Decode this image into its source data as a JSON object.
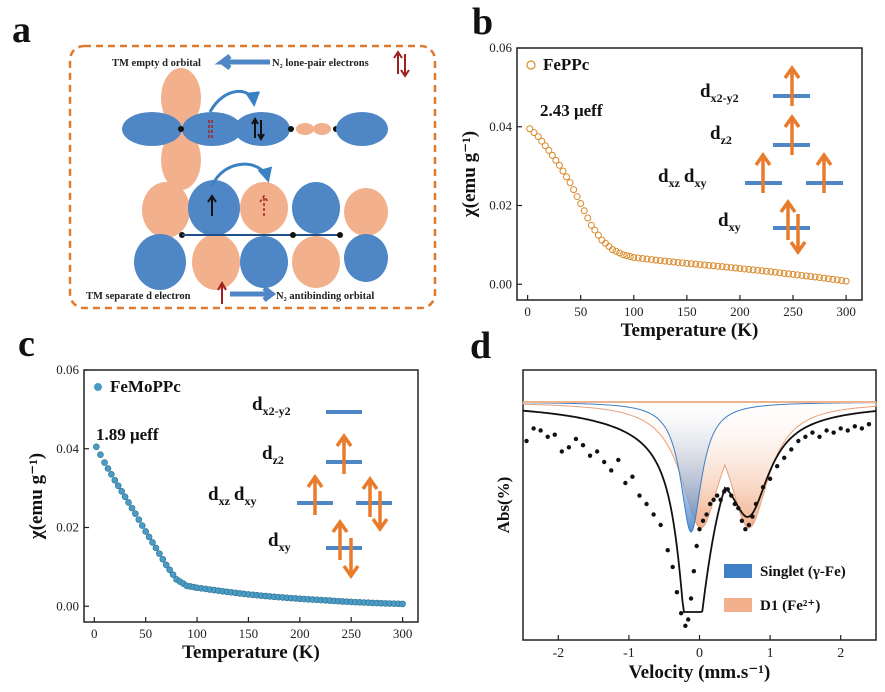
{
  "panels": {
    "a": {
      "letter": "a",
      "top_label_left": "TM empty d orbital",
      "top_label_right": "N₂ lone-pair electrons",
      "bottom_label_left": "TM separate d electron",
      "bottom_label_right": "N₂ antibinding orbital",
      "colors": {
        "blue": "#4f86c6",
        "salmon": "#f2b08c",
        "border": "#e07a2e",
        "arrow": "#3b82c4"
      }
    },
    "b": {
      "letter": "b",
      "moment_label": "2.43 μeff",
      "levels": [
        "d",
        "x2-y2",
        "d",
        "z2",
        "d",
        "xz",
        "d",
        "xy",
        "d",
        "xy"
      ]
    },
    "c": {
      "letter": "c",
      "moment_label": "1.89 μeff",
      "levels": [
        "d",
        "x2-y2",
        "d",
        "z2",
        "d",
        "xz",
        "d",
        "xy",
        "d",
        "xy"
      ]
    },
    "d": {
      "letter": "d"
    }
  },
  "chart_data": [
    {
      "id": "b",
      "type": "scatter",
      "xlabel": "Temperature (K)",
      "ylabel": "χ(emu g⁻¹)",
      "xlim": [
        -10,
        315
      ],
      "ylim": [
        -0.004,
        0.06
      ],
      "xticks": [
        0,
        50,
        100,
        150,
        200,
        250,
        300
      ],
      "yticks": [
        0.0,
        0.02,
        0.04,
        0.06
      ],
      "ytick_labels": [
        "0.00",
        "0.02",
        "0.04",
        "0.06"
      ],
      "legend": "top-left",
      "series": [
        {
          "name": "FePPc",
          "color": "#d98a2b",
          "marker": "open-circle",
          "x": [
            2,
            10,
            20,
            30,
            40,
            50,
            60,
            70,
            80,
            90,
            100,
            125,
            150,
            175,
            200,
            225,
            250,
            275,
            300
          ],
          "y": [
            0.0395,
            0.0375,
            0.034,
            0.0302,
            0.0258,
            0.0205,
            0.015,
            0.0112,
            0.0088,
            0.0075,
            0.0068,
            0.006,
            0.0053,
            0.0047,
            0.004,
            0.0033,
            0.0025,
            0.0017,
            0.0008
          ]
        }
      ]
    },
    {
      "id": "c",
      "type": "scatter",
      "xlabel": "Temperature (K)",
      "ylabel": "χ(emu g⁻¹)",
      "xlim": [
        -10,
        315
      ],
      "ylim": [
        -0.004,
        0.06
      ],
      "xticks": [
        0,
        50,
        100,
        150,
        200,
        250,
        300
      ],
      "yticks": [
        0.0,
        0.02,
        0.04,
        0.06
      ],
      "ytick_labels": [
        "0.00",
        "0.02",
        "0.04",
        "0.06"
      ],
      "legend": "top-left",
      "series": [
        {
          "name": "FeMoPPc",
          "color": "#4a9cc4",
          "marker": "filled-circle",
          "x": [
            2,
            10,
            20,
            30,
            40,
            50,
            60,
            70,
            80,
            90,
            100,
            125,
            150,
            175,
            200,
            225,
            250,
            275,
            300
          ],
          "y": [
            0.0405,
            0.0365,
            0.032,
            0.0278,
            0.0235,
            0.019,
            0.0148,
            0.0105,
            0.0068,
            0.0052,
            0.0047,
            0.0038,
            0.003,
            0.0024,
            0.0019,
            0.0015,
            0.0011,
            0.0008,
            0.0006
          ]
        }
      ]
    },
    {
      "id": "d",
      "type": "scatter",
      "xlabel": "Velocity (mm.s⁻¹)",
      "ylabel": "Abs(%)",
      "xlim": [
        -2.5,
        2.5
      ],
      "xticks": [
        -2,
        -1,
        0,
        1,
        2
      ],
      "yticks": [],
      "legend": "bottom-right",
      "series": [
        {
          "name": "Singlet (γ-Fe)",
          "color": "#3f7fc6",
          "type": "area",
          "center": -0.12,
          "width": 0.18,
          "depth": 0.62
        },
        {
          "name": "D1 (Fe²⁺)",
          "color": "#f2b08c",
          "type": "area",
          "centers": [
            0.02,
            0.7
          ],
          "width": 0.34,
          "depth": 0.6
        },
        {
          "type": "data-points",
          "color": "#111",
          "x": [
            -2.45,
            -2.35,
            -2.25,
            -2.15,
            -2.05,
            -1.95,
            -1.85,
            -1.75,
            -1.65,
            -1.55,
            -1.45,
            -1.35,
            -1.25,
            -1.15,
            -1.05,
            -0.95,
            -0.85,
            -0.75,
            -0.65,
            -0.55,
            -0.45,
            -0.38,
            -0.32,
            -0.26,
            -0.2,
            -0.16,
            -0.12,
            -0.08,
            -0.04,
            0.0,
            0.05,
            0.1,
            0.15,
            0.2,
            0.25,
            0.3,
            0.35,
            0.4,
            0.45,
            0.5,
            0.55,
            0.6,
            0.65,
            0.7,
            0.75,
            0.8,
            0.9,
            1.0,
            1.1,
            1.2,
            1.3,
            1.4,
            1.5,
            1.6,
            1.7,
            1.8,
            1.9,
            2.0,
            2.1,
            2.2,
            2.3,
            2.4
          ],
          "y": [
            0.1,
            0.04,
            0.05,
            0.08,
            0.07,
            0.15,
            0.13,
            0.09,
            0.12,
            0.17,
            0.15,
            0.2,
            0.24,
            0.19,
            0.3,
            0.27,
            0.36,
            0.4,
            0.45,
            0.5,
            0.62,
            0.7,
            0.82,
            0.92,
            0.98,
            0.95,
            0.85,
            0.72,
            0.6,
            0.52,
            0.48,
            0.45,
            0.4,
            0.38,
            0.36,
            0.38,
            0.34,
            0.33,
            0.36,
            0.4,
            0.42,
            0.48,
            0.52,
            0.5,
            0.46,
            0.4,
            0.32,
            0.28,
            0.22,
            0.18,
            0.14,
            0.1,
            0.08,
            0.06,
            0.08,
            0.05,
            0.06,
            0.04,
            0.05,
            0.03,
            0.04,
            0.02
          ]
        }
      ]
    }
  ]
}
